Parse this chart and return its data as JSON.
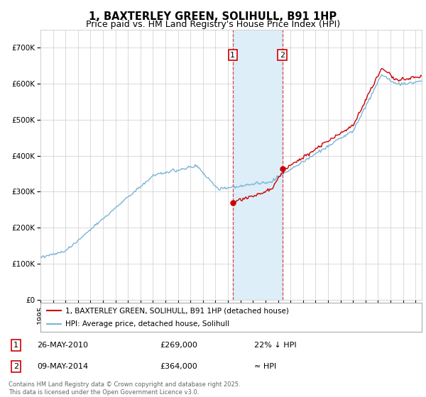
{
  "title": "1, BAXTERLEY GREEN, SOLIHULL, B91 1HP",
  "subtitle": "Price paid vs. HM Land Registry's House Price Index (HPI)",
  "ylim": [
    0,
    750000
  ],
  "yticks": [
    0,
    100000,
    200000,
    300000,
    400000,
    500000,
    600000,
    700000
  ],
  "ytick_labels": [
    "£0",
    "£100K",
    "£200K",
    "£300K",
    "£400K",
    "£500K",
    "£600K",
    "£700K"
  ],
  "xlim_start": 1995.0,
  "xlim_end": 2025.5,
  "hpi_color": "#7ab4d8",
  "price_color": "#cc0000",
  "sale1_x": 2010.38,
  "sale1_y": 269000,
  "sale1_label": "1",
  "sale1_date": "26-MAY-2010",
  "sale1_price": "£269,000",
  "sale1_hpi_text": "22% ↓ HPI",
  "sale2_x": 2014.35,
  "sale2_y": 364000,
  "sale2_label": "2",
  "sale2_date": "09-MAY-2014",
  "sale2_price": "£364,000",
  "sale2_hpi_text": "≈ HPI",
  "shade_color": "#ddeef8",
  "legend_line1": "1, BAXTERLEY GREEN, SOLIHULL, B91 1HP (detached house)",
  "legend_line2": "HPI: Average price, detached house, Solihull",
  "footnote": "Contains HM Land Registry data © Crown copyright and database right 2025.\nThis data is licensed under the Open Government Licence v3.0.",
  "title_fontsize": 10.5,
  "subtitle_fontsize": 9,
  "tick_fontsize": 7.5,
  "background_color": "#ffffff",
  "grid_color": "#cccccc"
}
